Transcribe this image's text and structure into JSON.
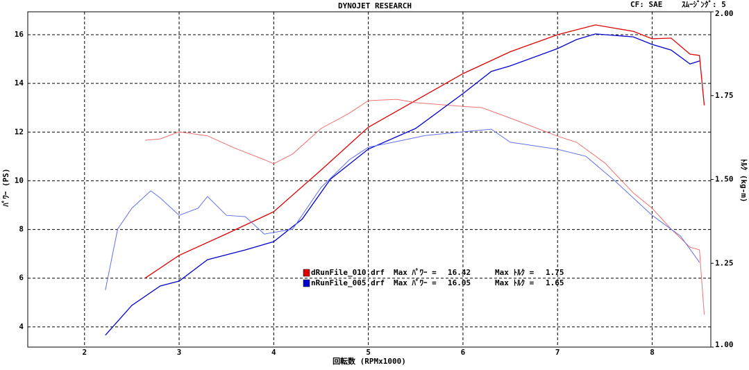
{
  "chart_data": {
    "type": "line",
    "title": "DYNOJET  RESEARCH",
    "cf": "CF: SAE",
    "smoothing": "ｽﾑｰｼﾞﾝｸﾞ: 5",
    "xlabel": "回転数 (RPMx1000)",
    "ylabel": "ﾊﾟﾜｰ (PS)",
    "y2label": "ﾄﾙｸ (kg-m)",
    "xlim": [
      1.4,
      8.62
    ],
    "xticks": [
      2,
      3,
      4,
      5,
      6,
      7,
      8
    ],
    "ylim": [
      3.17,
      16.94
    ],
    "yticks": [
      4,
      6,
      8,
      10,
      12,
      14,
      16
    ],
    "y2lim": [
      1.0,
      2.0
    ],
    "y2ticks": [
      {
        "value": 1.0,
        "label": "1.00"
      },
      {
        "value": 1.25,
        "label": "1.25"
      },
      {
        "value": 1.5,
        "label": "1.50"
      },
      {
        "value": 1.75,
        "label": "1.75"
      },
      {
        "value": 2.0,
        "label": "2.00"
      }
    ],
    "grid": true,
    "series": [
      {
        "name": "dRunFile_010.drf",
        "color": "#e00000",
        "x": [
          2.64,
          3.0,
          3.5,
          4.0,
          4.5,
          5.0,
          5.5,
          6.0,
          6.5,
          7.0,
          7.4,
          7.8,
          8.0,
          8.2,
          8.4,
          8.5,
          8.55
        ],
        "values": [
          6.0,
          6.94,
          7.82,
          8.73,
          10.44,
          12.2,
          13.3,
          14.4,
          15.3,
          16.0,
          16.4,
          16.14,
          15.83,
          15.86,
          15.2,
          15.15,
          13.1
        ]
      },
      {
        "name": "dRunFile_010.drf",
        "color": "#f07070",
        "axis": "y2",
        "x": [
          2.64,
          2.8,
          3.0,
          3.3,
          3.6,
          3.9,
          4.0,
          4.2,
          4.5,
          4.8,
          5.0,
          5.3,
          5.5,
          6.0,
          6.2,
          6.5,
          7.0,
          7.2,
          7.5,
          7.8,
          8.0,
          8.2,
          8.4,
          8.5,
          8.55
        ],
        "values": [
          1.617,
          1.621,
          1.642,
          1.63,
          1.592,
          1.559,
          1.547,
          1.576,
          1.652,
          1.698,
          1.735,
          1.739,
          1.729,
          1.718,
          1.714,
          1.683,
          1.629,
          1.611,
          1.549,
          1.46,
          1.414,
          1.352,
          1.298,
          1.29,
          1.097
        ]
      },
      {
        "name": "nRunFile_005.drf",
        "color": "#0000d0",
        "x": [
          2.22,
          2.5,
          2.8,
          3.0,
          3.3,
          3.7,
          4.0,
          4.3,
          4.6,
          5.0,
          5.5,
          6.0,
          6.3,
          6.5,
          7.0,
          7.2,
          7.4,
          7.8,
          8.0,
          8.2,
          8.4,
          8.5
        ],
        "values": [
          3.66,
          4.88,
          5.68,
          5.88,
          6.76,
          7.16,
          7.5,
          8.42,
          10.07,
          11.3,
          12.15,
          13.58,
          14.49,
          14.72,
          15.43,
          15.8,
          16.03,
          15.91,
          15.6,
          15.37,
          14.8,
          14.92
        ]
      },
      {
        "name": "nRunFile_005.drf",
        "color": "#6070f0",
        "axis": "y2",
        "x": [
          2.22,
          2.35,
          2.5,
          2.7,
          2.8,
          3.0,
          3.2,
          3.3,
          3.5,
          3.7,
          3.9,
          4.2,
          4.5,
          4.8,
          5.0,
          5.3,
          5.6,
          6.0,
          6.3,
          6.5,
          7.0,
          7.3,
          7.6,
          8.0,
          8.3,
          8.5
        ],
        "values": [
          1.17,
          1.352,
          1.414,
          1.466,
          1.445,
          1.393,
          1.414,
          1.449,
          1.393,
          1.389,
          1.337,
          1.352,
          1.476,
          1.559,
          1.596,
          1.613,
          1.631,
          1.642,
          1.65,
          1.611,
          1.59,
          1.569,
          1.497,
          1.393,
          1.331,
          1.253
        ]
      }
    ],
    "legend": [
      {
        "file": "dRunFile_010.drf",
        "color": "#e00000",
        "power_label": "Max ﾊﾟﾜｰ =",
        "max_power": 16.42,
        "torque_label": "Max ﾄﾙｸ =",
        "max_torque": 1.75
      },
      {
        "file": "nRunFile_005.drf",
        "color": "#0000d0",
        "power_label": "Max ﾊﾟﾜｰ =",
        "max_power": 16.05,
        "torque_label": "Max ﾄﾙｸ =",
        "max_torque": 1.65
      }
    ]
  }
}
